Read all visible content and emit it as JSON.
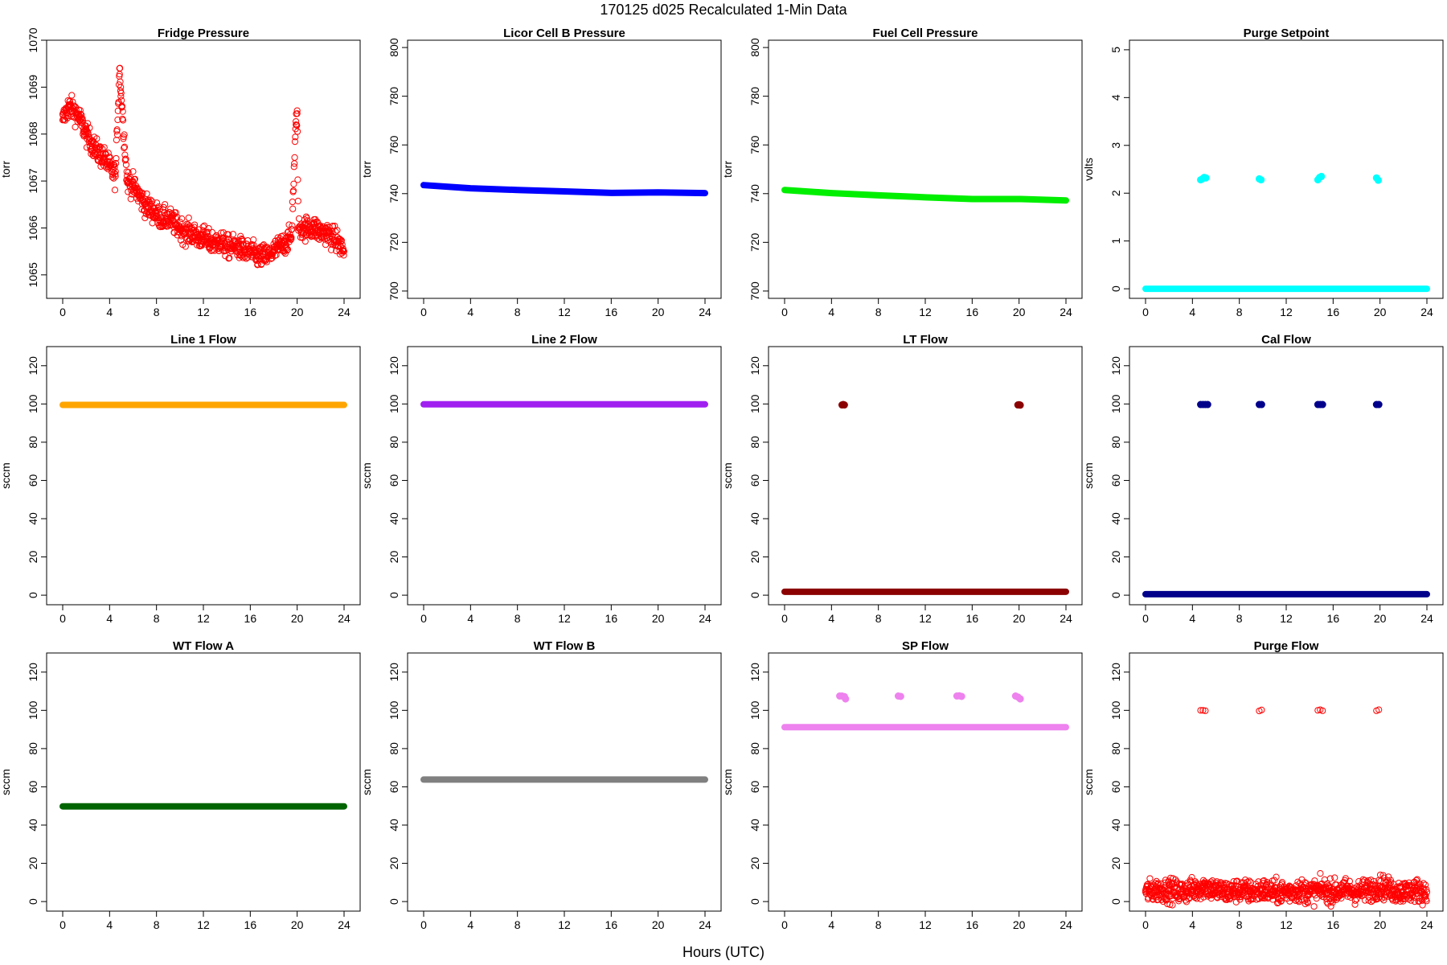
{
  "figure": {
    "title": "170125   d025   Recalculated 1-Min Data",
    "xlabel": "Hours (UTC)"
  },
  "chart_data": [
    {
      "type": "scatter",
      "title": "Fridge Pressure",
      "ylabel": "torr",
      "xlim": [
        0,
        24
      ],
      "ylim": [
        1064.5,
        1070
      ],
      "xticks": [
        "0",
        "4",
        "8",
        "12",
        "16",
        "20",
        "24"
      ],
      "yticks": [
        "1065",
        "1066",
        "1067",
        "1068",
        "1069",
        "1070"
      ],
      "color": "#ff0000",
      "marker": "open-circle",
      "series": [
        {
          "x": [
            0,
            0.5,
            1,
            1.5,
            2,
            2.5,
            3,
            3.5,
            4,
            4.5,
            4.85,
            4.95,
            5.05,
            5.5,
            6,
            6.5,
            7,
            7.5,
            8,
            8.5,
            9,
            9.5,
            10,
            10.5,
            11,
            11.5,
            12,
            12.5,
            13,
            13.5,
            14,
            14.5,
            15,
            15.5,
            16,
            16.5,
            17,
            17.5,
            18,
            18.5,
            19,
            19.5,
            19.9,
            20.0,
            20.1,
            20.5,
            21,
            21.5,
            22,
            22.5,
            23,
            23.5,
            24
          ],
          "y": [
            1068.3,
            1068.6,
            1068.5,
            1068.3,
            1068.0,
            1067.8,
            1067.6,
            1067.5,
            1067.3,
            1067.1,
            1069.4,
            1069.0,
            1068.6,
            1067.0,
            1066.9,
            1066.7,
            1066.5,
            1066.4,
            1066.3,
            1066.2,
            1066.2,
            1066.1,
            1066.0,
            1065.9,
            1065.9,
            1065.8,
            1065.8,
            1065.7,
            1065.7,
            1065.7,
            1065.6,
            1065.6,
            1065.6,
            1065.5,
            1065.5,
            1065.4,
            1065.4,
            1065.4,
            1065.5,
            1065.6,
            1065.7,
            1065.8,
            1068.2,
            1068.5,
            1066.0,
            1066.0,
            1066.0,
            1066.0,
            1065.9,
            1065.9,
            1065.8,
            1065.7,
            1065.5
          ]
        }
      ]
    },
    {
      "type": "scatter",
      "title": "Licor Cell B Pressure",
      "ylabel": "torr",
      "xlim": [
        0,
        24
      ],
      "ylim": [
        697,
        803
      ],
      "xticks": [
        "0",
        "4",
        "8",
        "12",
        "16",
        "20",
        "24"
      ],
      "yticks": [
        "700",
        "720",
        "740",
        "760",
        "780",
        "800"
      ],
      "color": "#0000ff",
      "marker": "filled-line",
      "series": [
        {
          "x": [
            0,
            4,
            8,
            12,
            16,
            20,
            24
          ],
          "y": [
            743.5,
            742.2,
            741.5,
            740.9,
            740.3,
            740.5,
            740.2
          ]
        }
      ]
    },
    {
      "type": "scatter",
      "title": "Fuel Cell Pressure",
      "ylabel": "torr",
      "xlim": [
        0,
        24
      ],
      "ylim": [
        697,
        803
      ],
      "xticks": [
        "0",
        "4",
        "8",
        "12",
        "16",
        "20",
        "24"
      ],
      "yticks": [
        "700",
        "720",
        "740",
        "760",
        "780",
        "800"
      ],
      "color": "#00ee00",
      "marker": "filled-line",
      "series": [
        {
          "x": [
            0,
            4,
            8,
            12,
            16,
            20,
            24
          ],
          "y": [
            741.5,
            740.2,
            739.3,
            738.5,
            737.8,
            737.8,
            737.2
          ]
        }
      ]
    },
    {
      "type": "scatter",
      "title": "Purge Setpoint",
      "ylabel": "volts",
      "xlim": [
        0,
        24
      ],
      "ylim": [
        -0.2,
        5.2
      ],
      "xticks": [
        "0",
        "4",
        "8",
        "12",
        "16",
        "20",
        "24"
      ],
      "yticks": [
        "0",
        "1",
        "2",
        "3",
        "4",
        "5"
      ],
      "color": "#00ffff",
      "marker": "filled-line",
      "series": [
        {
          "x": [
            0,
            24
          ],
          "y": [
            0,
            0
          ]
        },
        {
          "x": [
            4.7,
            4.85,
            5.0,
            5.15,
            9.7,
            9.85,
            14.7,
            14.85,
            15.0,
            19.7,
            19.85
          ],
          "y": [
            2.28,
            2.3,
            2.33,
            2.32,
            2.3,
            2.28,
            2.28,
            2.33,
            2.35,
            2.32,
            2.27
          ]
        }
      ]
    },
    {
      "type": "scatter",
      "title": "Line 1 Flow",
      "ylabel": "sccm",
      "xlim": [
        0,
        24
      ],
      "ylim": [
        -5,
        130
      ],
      "xticks": [
        "0",
        "4",
        "8",
        "12",
        "16",
        "20",
        "24"
      ],
      "yticks": [
        "0",
        "20",
        "40",
        "60",
        "80",
        "100",
        "120"
      ],
      "color": "#ffa500",
      "marker": "filled-line",
      "series": [
        {
          "x": [
            0,
            24
          ],
          "y": [
            99.5,
            99.5
          ]
        }
      ]
    },
    {
      "type": "scatter",
      "title": "Line 2 Flow",
      "ylabel": "sccm",
      "xlim": [
        0,
        24
      ],
      "ylim": [
        -5,
        130
      ],
      "xticks": [
        "0",
        "4",
        "8",
        "12",
        "16",
        "20",
        "24"
      ],
      "yticks": [
        "0",
        "20",
        "40",
        "60",
        "80",
        "100",
        "120"
      ],
      "color": "#a020f0",
      "marker": "filled-line",
      "series": [
        {
          "x": [
            0,
            24
          ],
          "y": [
            99.8,
            99.8
          ]
        }
      ]
    },
    {
      "type": "scatter",
      "title": "LT Flow",
      "ylabel": "sccm",
      "xlim": [
        0,
        24
      ],
      "ylim": [
        -5,
        130
      ],
      "xticks": [
        "0",
        "4",
        "8",
        "12",
        "16",
        "20",
        "24"
      ],
      "yticks": [
        "0",
        "20",
        "40",
        "60",
        "80",
        "100",
        "120"
      ],
      "color": "#8b0000",
      "marker": "filled-line",
      "series": [
        {
          "x": [
            0,
            24
          ],
          "y": [
            1.8,
            1.8
          ]
        },
        {
          "x": [
            4.9,
            5.0,
            5.1,
            19.9,
            20.0,
            20.1
          ],
          "y": [
            99.5,
            99.7,
            99.5,
            99.5,
            99.6,
            99.4
          ]
        }
      ]
    },
    {
      "type": "scatter",
      "title": "Cal Flow",
      "ylabel": "sccm",
      "xlim": [
        0,
        24
      ],
      "ylim": [
        -5,
        130
      ],
      "xticks": [
        "0",
        "4",
        "8",
        "12",
        "16",
        "20",
        "24"
      ],
      "yticks": [
        "0",
        "20",
        "40",
        "60",
        "80",
        "100",
        "120"
      ],
      "color": "#00008b",
      "marker": "filled-line",
      "series": [
        {
          "x": [
            0,
            24
          ],
          "y": [
            0.5,
            0.5
          ]
        },
        {
          "x": [
            4.7,
            4.9,
            5.1,
            5.3,
            9.7,
            9.9,
            14.7,
            14.9,
            15.1,
            19.7,
            19.9
          ],
          "y": [
            99.7,
            99.7,
            99.7,
            99.7,
            99.7,
            99.7,
            99.7,
            99.7,
            99.7,
            99.7,
            99.7
          ]
        }
      ]
    },
    {
      "type": "scatter",
      "title": "WT Flow A",
      "ylabel": "sccm",
      "xlim": [
        0,
        24
      ],
      "ylim": [
        -5,
        130
      ],
      "xticks": [
        "0",
        "4",
        "8",
        "12",
        "16",
        "20",
        "24"
      ],
      "yticks": [
        "0",
        "20",
        "40",
        "60",
        "80",
        "100",
        "120"
      ],
      "color": "#006400",
      "marker": "filled-line",
      "series": [
        {
          "x": [
            0,
            24
          ],
          "y": [
            49.8,
            49.8
          ]
        }
      ]
    },
    {
      "type": "scatter",
      "title": "WT Flow B",
      "ylabel": "sccm",
      "xlim": [
        0,
        24
      ],
      "ylim": [
        -5,
        130
      ],
      "xticks": [
        "0",
        "4",
        "8",
        "12",
        "16",
        "20",
        "24"
      ],
      "yticks": [
        "0",
        "20",
        "40",
        "60",
        "80",
        "100",
        "120"
      ],
      "color": "#808080",
      "marker": "filled-line",
      "series": [
        {
          "x": [
            0,
            24
          ],
          "y": [
            63.8,
            63.8
          ]
        }
      ]
    },
    {
      "type": "scatter",
      "title": "SP Flow",
      "ylabel": "sccm",
      "xlim": [
        0,
        24
      ],
      "ylim": [
        -5,
        130
      ],
      "xticks": [
        "0",
        "4",
        "8",
        "12",
        "16",
        "20",
        "24"
      ],
      "yticks": [
        "0",
        "20",
        "40",
        "60",
        "80",
        "100",
        "120"
      ],
      "color": "#ee82ee",
      "marker": "filled-line",
      "series": [
        {
          "x": [
            0,
            24
          ],
          "y": [
            91.2,
            91.2
          ]
        },
        {
          "x": [
            4.7,
            4.9,
            5.1,
            5.2,
            9.7,
            9.9,
            14.7,
            14.9,
            15.1,
            19.7,
            19.9,
            20.1
          ],
          "y": [
            107.5,
            107.5,
            107.2,
            106.0,
            107.5,
            107.3,
            107.5,
            107.6,
            107.3,
            107.5,
            107.0,
            106.0
          ]
        }
      ]
    },
    {
      "type": "scatter",
      "title": "Purge Flow",
      "ylabel": "sccm",
      "xlim": [
        0,
        24
      ],
      "ylim": [
        -5,
        130
      ],
      "xticks": [
        "0",
        "4",
        "8",
        "12",
        "16",
        "20",
        "24"
      ],
      "yticks": [
        "0",
        "20",
        "40",
        "60",
        "80",
        "100",
        "120"
      ],
      "color": "#ff0000",
      "marker": "open-circle",
      "series": [
        {
          "x": [
            0,
            1,
            2,
            3,
            4,
            5,
            6,
            7,
            8,
            9,
            10,
            11,
            12,
            13,
            14,
            15,
            16,
            17,
            18,
            19,
            20,
            21,
            22,
            23,
            24
          ],
          "y": [
            5,
            6,
            6,
            5,
            6,
            8,
            6,
            5,
            6,
            5,
            6,
            5,
            5,
            6,
            5,
            6,
            5,
            6,
            5,
            6,
            8,
            6,
            5,
            6,
            5
          ]
        },
        {
          "x": [
            4.7,
            4.9,
            5.1,
            9.7,
            9.9,
            14.7,
            14.9,
            15.1,
            19.7,
            19.9
          ],
          "y": [
            100,
            100,
            99.8,
            99.7,
            100.2,
            100,
            100.3,
            99.8,
            99.8,
            100.3
          ]
        }
      ]
    }
  ]
}
